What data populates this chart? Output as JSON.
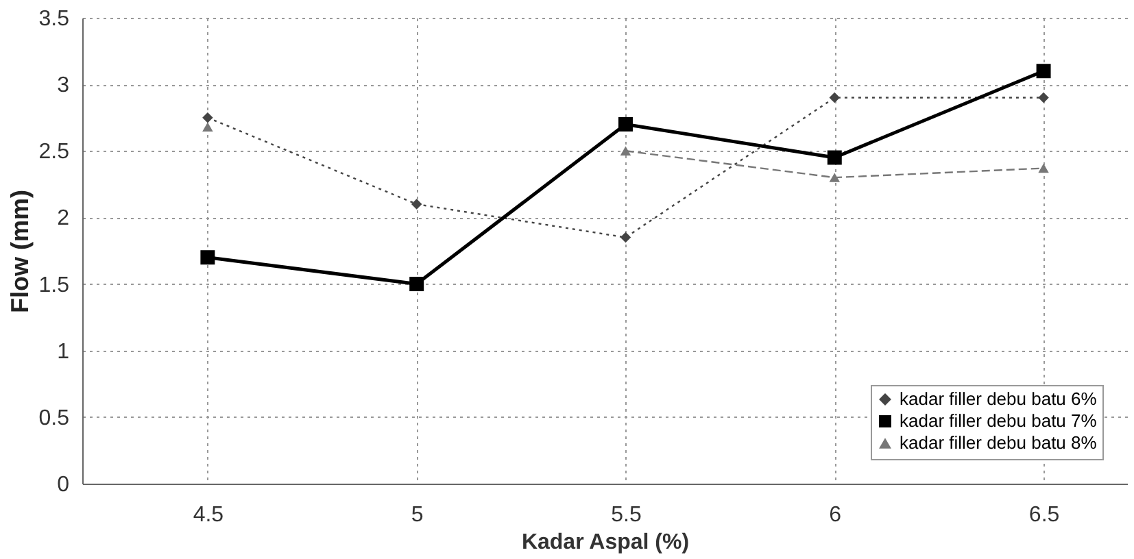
{
  "chart_data": {
    "type": "line",
    "xlabel": "Kadar Aspal (%)",
    "ylabel": "Flow (mm)",
    "x": [
      4.5,
      5,
      5.5,
      6,
      6.5
    ],
    "xlim": [
      4.2,
      6.7
    ],
    "xticks": [
      4.5,
      5,
      5.5,
      6,
      6.5
    ],
    "ylim": [
      0,
      3.5
    ],
    "yticks": [
      0,
      0.5,
      1,
      1.5,
      2,
      2.5,
      3,
      3.5
    ],
    "grid": true,
    "legend": "bottom right",
    "series": [
      {
        "name": "kadar filler debu batu 6%",
        "color": "#444444",
        "values": [
          2.75,
          2.1,
          1.85,
          2.9,
          2.9
        ],
        "marker": "diamond",
        "line_style": "dotted"
      },
      {
        "name": "kadar filler debu batu 7%",
        "color": "#000000",
        "values": [
          1.7,
          1.5,
          2.7,
          2.45,
          3.1
        ],
        "marker": "square",
        "line_style": "solid"
      },
      {
        "name": "kadar filler debu batu 8%",
        "color": "#777777",
        "values": [
          2.68,
          null,
          2.5,
          2.3,
          2.37
        ],
        "marker": "triangle",
        "line_style": "dashed"
      }
    ]
  }
}
